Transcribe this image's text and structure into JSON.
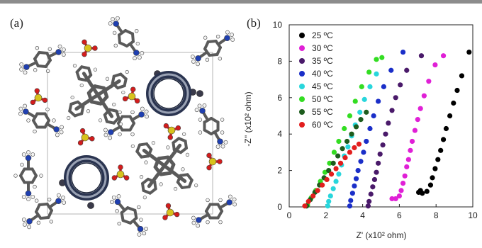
{
  "panel_a": {
    "label": "(a)"
  },
  "panel_b": {
    "label": "(b)"
  },
  "colors": {
    "carbon": "#5a5a5a",
    "hydrogen": "#f2f2f2",
    "nitrogen": "#1f3fb0",
    "oxygen": "#d41c1c",
    "sulfur": "#d8c21c",
    "ring": "#2a3450"
  },
  "chart_data": {
    "type": "scatter",
    "xlabel": "Z' (x10² ohm)",
    "ylabel": "-Z'' (x10² ohm)",
    "xlim": [
      0,
      10
    ],
    "ylim": [
      0,
      10
    ],
    "xticks": [
      "0",
      "2",
      "4",
      "6",
      "8",
      "10"
    ],
    "yticks": [
      "0",
      "2",
      "4",
      "6",
      "8",
      "10"
    ],
    "legend_position": "top-left",
    "series": [
      {
        "name": "25 ºC",
        "color": "#000000",
        "points": [
          [
            7.15,
            0.9
          ],
          [
            7.05,
            0.8
          ],
          [
            7.25,
            0.75
          ],
          [
            7.5,
            0.85
          ],
          [
            7.7,
            1.2
          ],
          [
            7.8,
            1.6
          ],
          [
            7.95,
            2.1
          ],
          [
            8.1,
            2.6
          ],
          [
            8.25,
            3.1
          ],
          [
            8.4,
            3.7
          ],
          [
            8.55,
            4.3
          ],
          [
            8.75,
            5.0
          ],
          [
            8.95,
            5.7
          ],
          [
            9.15,
            6.4
          ],
          [
            9.4,
            7.2
          ],
          [
            9.8,
            8.5
          ]
        ]
      },
      {
        "name": "30 ºC",
        "color": "#e020d6",
        "points": [
          [
            5.6,
            0.45
          ],
          [
            5.8,
            0.45
          ],
          [
            6.0,
            0.6
          ],
          [
            6.1,
            0.9
          ],
          [
            6.2,
            1.3
          ],
          [
            6.3,
            1.7
          ],
          [
            6.4,
            2.2
          ],
          [
            6.5,
            2.6
          ],
          [
            6.6,
            3.1
          ],
          [
            6.7,
            3.6
          ],
          [
            6.85,
            4.2
          ],
          [
            7.0,
            4.8
          ],
          [
            7.15,
            5.4
          ],
          [
            7.35,
            6.1
          ],
          [
            7.6,
            6.9
          ],
          [
            7.95,
            7.8
          ],
          [
            8.4,
            8.3
          ]
        ]
      },
      {
        "name": "35 ºC",
        "color": "#4a1a6a",
        "points": [
          [
            4.3,
            0.05
          ],
          [
            4.35,
            0.3
          ],
          [
            4.45,
            0.7
          ],
          [
            4.55,
            1.1
          ],
          [
            4.65,
            1.5
          ],
          [
            4.75,
            1.9
          ],
          [
            4.85,
            2.4
          ],
          [
            4.95,
            2.9
          ],
          [
            5.1,
            3.4
          ],
          [
            5.25,
            4.0
          ],
          [
            5.4,
            4.6
          ],
          [
            5.6,
            5.3
          ],
          [
            5.8,
            6.0
          ],
          [
            6.05,
            6.7
          ],
          [
            6.4,
            7.5
          ],
          [
            7.2,
            8.3
          ]
        ]
      },
      {
        "name": "40 ºC",
        "color": "#1a2ec8",
        "points": [
          [
            3.3,
            0.05
          ],
          [
            3.35,
            0.35
          ],
          [
            3.45,
            0.75
          ],
          [
            3.55,
            1.15
          ],
          [
            3.65,
            1.55
          ],
          [
            3.75,
            2.0
          ],
          [
            3.9,
            2.5
          ],
          [
            4.05,
            3.0
          ],
          [
            4.2,
            3.6
          ],
          [
            4.4,
            4.3
          ],
          [
            4.6,
            5.0
          ],
          [
            4.85,
            5.8
          ],
          [
            5.15,
            6.6
          ],
          [
            5.55,
            7.5
          ],
          [
            6.2,
            8.5
          ]
        ]
      },
      {
        "name": "45 ºC",
        "color": "#28d6dc",
        "points": [
          [
            2.1,
            0.05
          ],
          [
            2.15,
            0.3
          ],
          [
            2.25,
            0.6
          ],
          [
            2.4,
            1.0
          ],
          [
            2.55,
            1.4
          ],
          [
            2.7,
            1.8
          ],
          [
            2.85,
            2.3
          ],
          [
            3.0,
            2.8
          ],
          [
            3.2,
            3.3
          ],
          [
            3.4,
            3.9
          ],
          [
            3.6,
            4.5
          ],
          [
            3.85,
            5.2
          ],
          [
            4.1,
            5.9
          ],
          [
            4.4,
            6.6
          ],
          [
            4.75,
            7.3
          ]
        ]
      },
      {
        "name": "50 ºC",
        "color": "#33dd22",
        "points": [
          [
            1.0,
            0.1
          ],
          [
            1.2,
            0.5
          ],
          [
            1.45,
            0.9
          ],
          [
            1.7,
            1.4
          ],
          [
            1.95,
            1.9
          ],
          [
            2.2,
            2.4
          ],
          [
            2.45,
            3.0
          ],
          [
            2.7,
            3.6
          ],
          [
            3.0,
            4.3
          ],
          [
            3.3,
            5.0
          ],
          [
            3.6,
            5.8
          ],
          [
            3.95,
            6.6
          ],
          [
            4.35,
            7.4
          ],
          [
            4.75,
            8.1
          ],
          [
            5.05,
            8.2
          ]
        ]
      },
      {
        "name": "55 ºC",
        "color": "#1d5c1d",
        "points": [
          [
            0.95,
            0.05
          ],
          [
            1.15,
            0.4
          ],
          [
            1.4,
            0.8
          ],
          [
            1.65,
            1.2
          ],
          [
            1.9,
            1.6
          ],
          [
            2.15,
            2.0
          ],
          [
            2.4,
            2.4
          ],
          [
            2.65,
            2.8
          ],
          [
            2.9,
            3.2
          ],
          [
            3.15,
            3.6
          ],
          [
            3.4,
            4.0
          ],
          [
            3.65,
            4.4
          ],
          [
            3.9,
            4.8
          ],
          [
            4.2,
            5.2
          ]
        ]
      },
      {
        "name": "60 ºC",
        "color": "#e21e1e",
        "points": [
          [
            0.85,
            0.05
          ],
          [
            1.05,
            0.3
          ],
          [
            1.3,
            0.6
          ],
          [
            1.55,
            0.9
          ],
          [
            1.8,
            1.2
          ],
          [
            2.05,
            1.5
          ],
          [
            2.3,
            1.8
          ],
          [
            2.55,
            2.1
          ],
          [
            2.8,
            2.4
          ],
          [
            3.05,
            2.7
          ],
          [
            3.3,
            3.0
          ],
          [
            3.55,
            3.25
          ],
          [
            3.8,
            3.45
          ]
        ]
      }
    ]
  }
}
